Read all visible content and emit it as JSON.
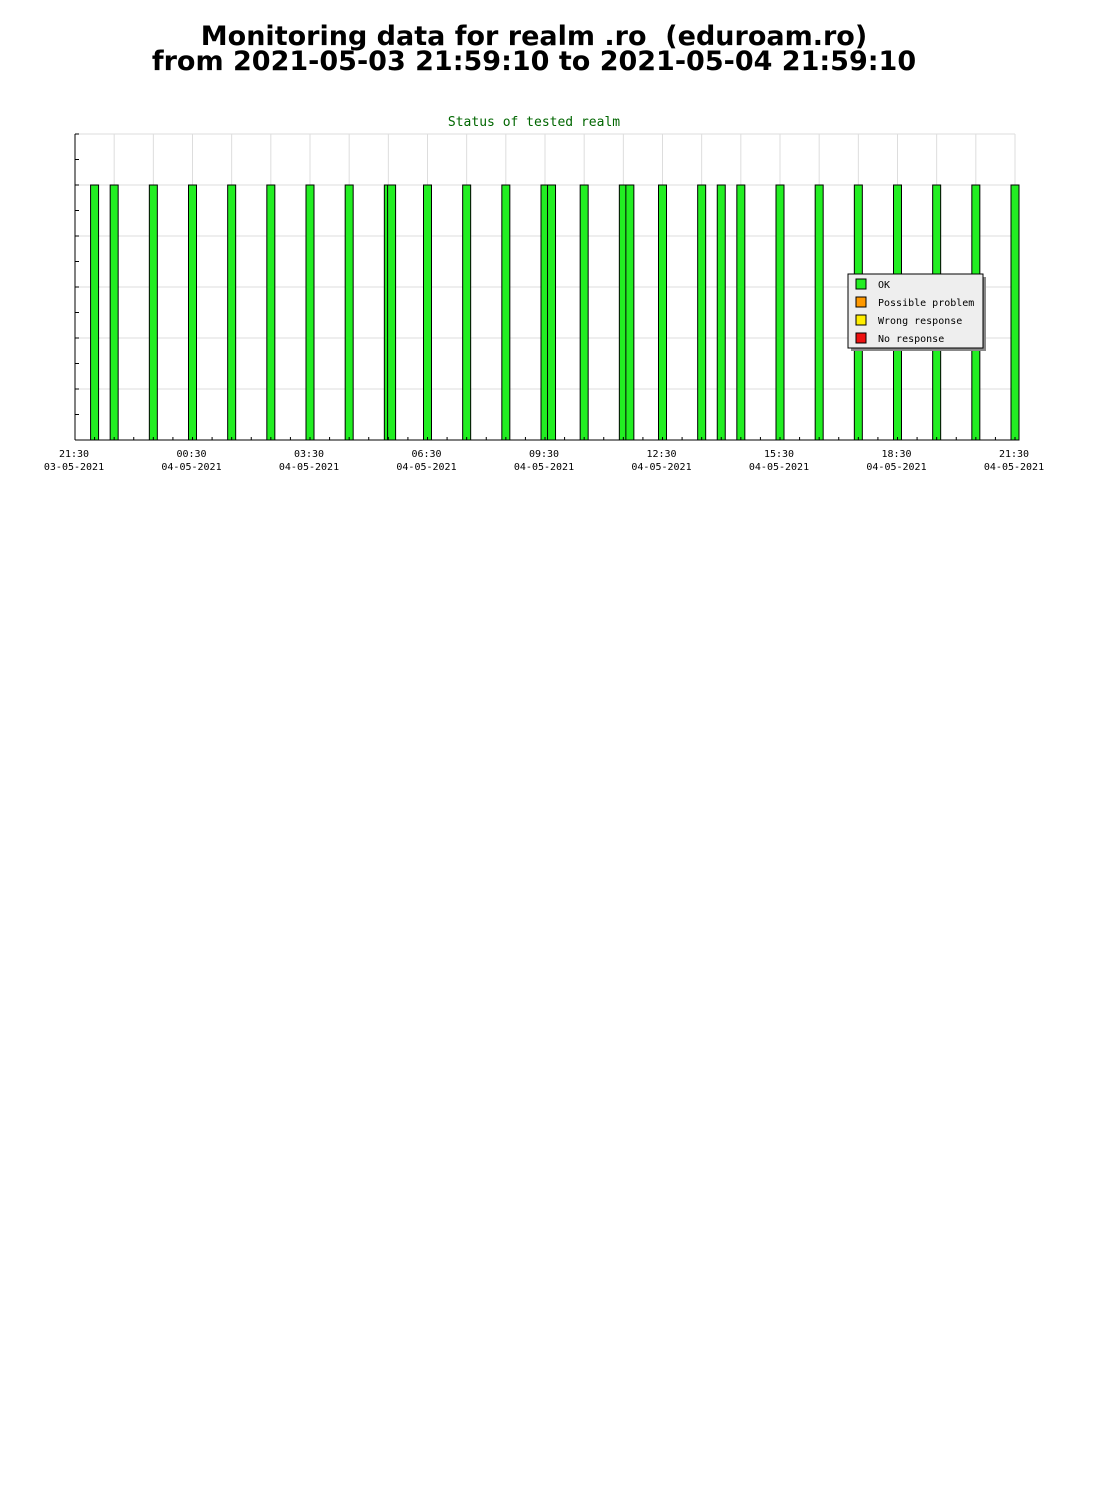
{
  "page": {
    "title_line1": "Monitoring data for realm .ro  (eduroam.ro)",
    "title_line2": "from 2021-05-03 21:59:10 to 2021-05-04 21:59:10"
  },
  "chart_data": {
    "type": "bar",
    "title": "Status of tested realm",
    "x_axis": {
      "start": "2021-05-03 21:30",
      "end": "2021-05-04 21:30",
      "tick_labels": [
        {
          "time": "21:30",
          "date": "03-05-2021"
        },
        {
          "time": "00:30",
          "date": "04-05-2021"
        },
        {
          "time": "03:30",
          "date": "04-05-2021"
        },
        {
          "time": "06:30",
          "date": "04-05-2021"
        },
        {
          "time": "09:30",
          "date": "04-05-2021"
        },
        {
          "time": "12:30",
          "date": "04-05-2021"
        },
        {
          "time": "15:30",
          "date": "04-05-2021"
        },
        {
          "time": "18:30",
          "date": "04-05-2021"
        },
        {
          "time": "21:30",
          "date": "04-05-2021"
        }
      ]
    },
    "y_axis": {
      "tick_labels_shown": false,
      "ylim": [
        0,
        1.2
      ]
    },
    "grid": true,
    "legend_position": "right",
    "series": [
      {
        "name": "OK",
        "color": "#22ee22",
        "points": [
          {
            "t": "2021-05-03 22:00",
            "value": 1
          },
          {
            "t": "2021-05-03 22:30",
            "value": 1
          },
          {
            "t": "2021-05-03 23:30",
            "value": 1
          },
          {
            "t": "2021-05-04 00:30",
            "value": 1
          },
          {
            "t": "2021-05-04 01:30",
            "value": 1
          },
          {
            "t": "2021-05-04 02:30",
            "value": 1
          },
          {
            "t": "2021-05-04 03:30",
            "value": 1
          },
          {
            "t": "2021-05-04 04:30",
            "value": 1
          },
          {
            "t": "2021-05-04 05:30",
            "value": 1
          },
          {
            "t": "2021-05-04 05:35",
            "value": 1
          },
          {
            "t": "2021-05-04 06:30",
            "value": 1
          },
          {
            "t": "2021-05-04 07:30",
            "value": 1
          },
          {
            "t": "2021-05-04 08:30",
            "value": 1
          },
          {
            "t": "2021-05-04 09:30",
            "value": 1
          },
          {
            "t": "2021-05-04 09:40",
            "value": 1
          },
          {
            "t": "2021-05-04 10:30",
            "value": 1
          },
          {
            "t": "2021-05-04 11:30",
            "value": 1
          },
          {
            "t": "2021-05-04 11:40",
            "value": 1
          },
          {
            "t": "2021-05-04 12:30",
            "value": 1
          },
          {
            "t": "2021-05-04 13:30",
            "value": 1
          },
          {
            "t": "2021-05-04 14:00",
            "value": 1
          },
          {
            "t": "2021-05-04 14:30",
            "value": 1
          },
          {
            "t": "2021-05-04 15:30",
            "value": 1
          },
          {
            "t": "2021-05-04 16:30",
            "value": 1
          },
          {
            "t": "2021-05-04 17:30",
            "value": 1
          },
          {
            "t": "2021-05-04 18:30",
            "value": 1
          },
          {
            "t": "2021-05-04 19:30",
            "value": 1
          },
          {
            "t": "2021-05-04 20:30",
            "value": 1
          },
          {
            "t": "2021-05-04 21:30",
            "value": 1
          }
        ]
      },
      {
        "name": "Possible problem",
        "color": "#ff9900",
        "points": []
      },
      {
        "name": "Wrong response",
        "color": "#ffee00",
        "points": []
      },
      {
        "name": "No response",
        "color": "#ee1111",
        "points": []
      }
    ]
  }
}
